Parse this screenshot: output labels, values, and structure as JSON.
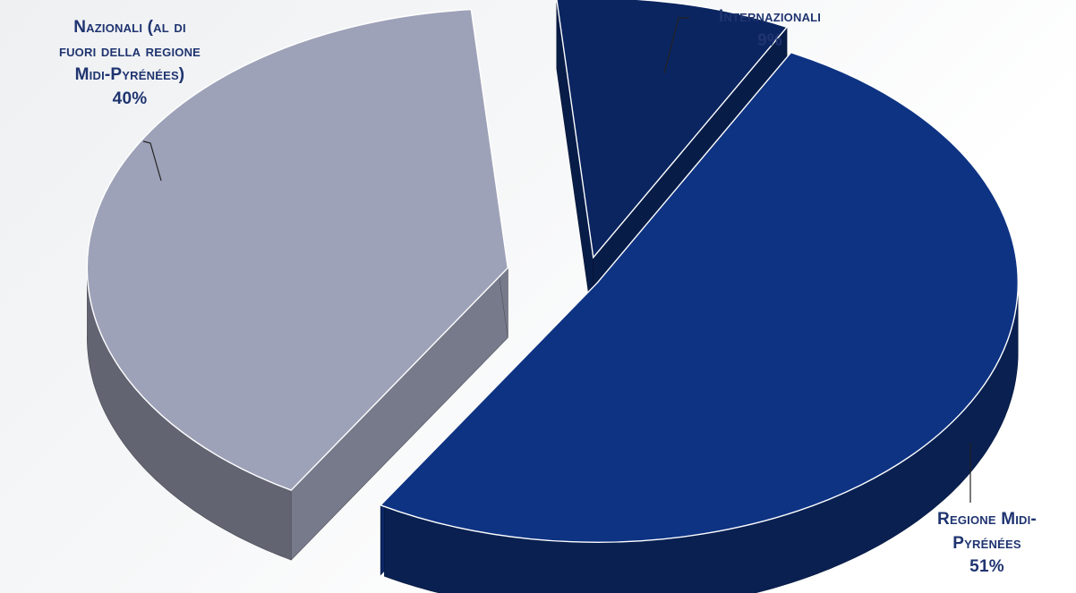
{
  "chart_data": {
    "type": "pie",
    "style": "3d-exploded",
    "slices": [
      {
        "key": "internazionali",
        "label": "Internazionali",
        "value": 9,
        "display": "9%",
        "color": "#0b2560"
      },
      {
        "key": "regione",
        "label": "Regione Midi-Pyrénées",
        "value": 51,
        "display": "51%",
        "color": "#0e3383"
      },
      {
        "key": "nazionali",
        "label": "Nazionali (al di fuori della regione Midi-Pyrénées)",
        "value": 40,
        "display": "40%",
        "color": "#9ea2b8"
      }
    ]
  },
  "labels": {
    "internazionali": {
      "line1": "Internazionali",
      "pct": "9%"
    },
    "nazionali": {
      "line1": "Nazionali (al di",
      "line2": "fuori della regione",
      "line3": "Midi-Pyrénées)",
      "pct": "40%"
    },
    "regione": {
      "line1": "Regione Midi-",
      "line2": "Pyrénées",
      "pct": "51%"
    }
  }
}
